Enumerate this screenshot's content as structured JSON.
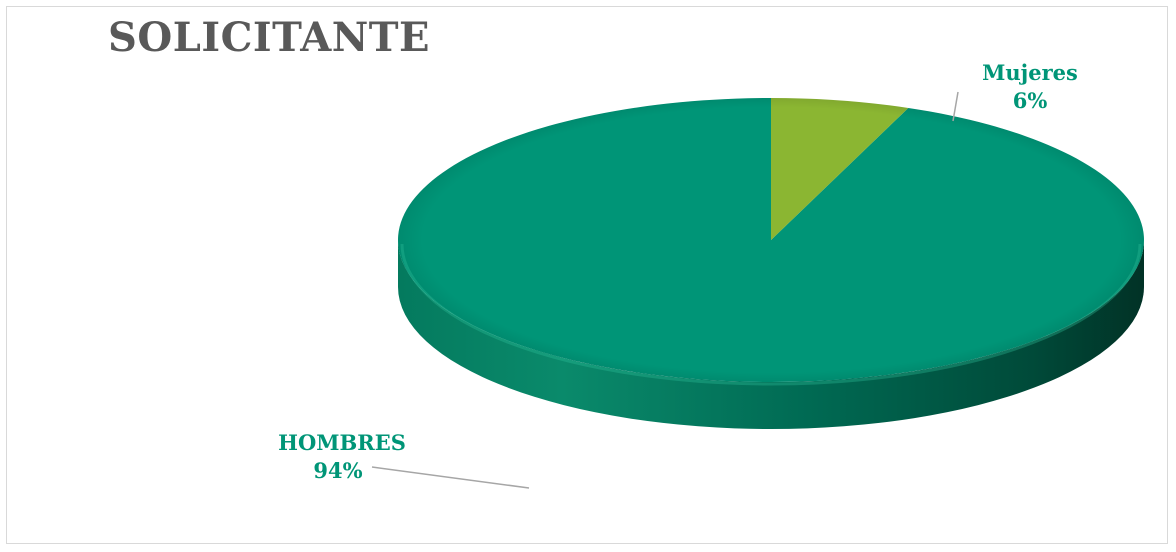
{
  "chart_data": {
    "type": "pie",
    "style": "3d",
    "title": "SOLICITANTE",
    "categories": [
      "HOMBRES",
      "Mujeres"
    ],
    "values": [
      94,
      6
    ],
    "unit": "%",
    "value_labels": [
      "94%",
      "6%"
    ],
    "colors": [
      "#009577",
      "#8bb632"
    ],
    "legend": "none",
    "labels_show": "category and percent"
  }
}
